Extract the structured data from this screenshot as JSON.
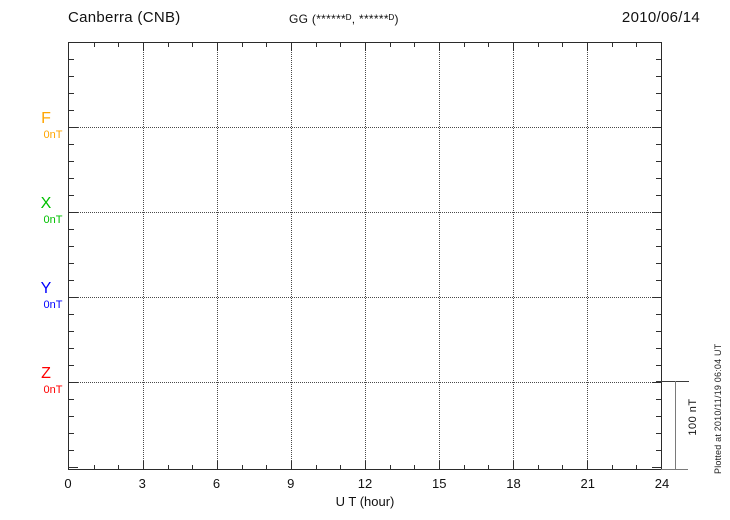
{
  "header": {
    "station": "Canberra (CNB)",
    "coords": "GG (******ᴰ, ******ᴰ)",
    "date": "2010/06/14"
  },
  "xaxis": {
    "label": "U T (hour)",
    "tick_labels": [
      "0",
      "3",
      "6",
      "9",
      "12",
      "15",
      "18",
      "21",
      "24"
    ]
  },
  "components": [
    {
      "label": "F",
      "unit": "0nT",
      "color": "#FFA500"
    },
    {
      "label": "X",
      "unit": "0nT",
      "color": "#00C000"
    },
    {
      "label": "Y",
      "unit": "0nT",
      "color": "#0000FF"
    },
    {
      "label": "Z",
      "unit": "0nT",
      "color": "#FF0000"
    }
  ],
  "scale_bar": {
    "label": "100 nT"
  },
  "footer": {
    "plotted_at": "Plotted at 2010/11/19 06:04 UT"
  },
  "chart_data": {
    "type": "line",
    "title": "Canberra (CNB) magnetogram",
    "date": "2010/06/14",
    "xlabel": "U T (hour)",
    "x_range": [
      0,
      24
    ],
    "x_major_ticks": [
      0,
      3,
      6,
      9,
      12,
      15,
      18,
      21,
      24
    ],
    "x_minor_tick_interval_hours": 1,
    "grid": true,
    "series": [
      {
        "name": "F",
        "baseline": "0nT",
        "color": "#FFA500",
        "values": []
      },
      {
        "name": "X",
        "baseline": "0nT",
        "color": "#00C000",
        "values": []
      },
      {
        "name": "Y",
        "baseline": "0nT",
        "color": "#0000FF",
        "values": []
      },
      {
        "name": "Z",
        "baseline": "0nT",
        "color": "#FF0000",
        "values": []
      }
    ],
    "scale_reference": "100 nT",
    "annotations": [
      "GG (******ᴰ, ******ᴰ)",
      "Plotted at 2010/11/19 06:04 UT"
    ],
    "note": "Empty magnetogram grid: no data traces are drawn for any component on this day"
  }
}
